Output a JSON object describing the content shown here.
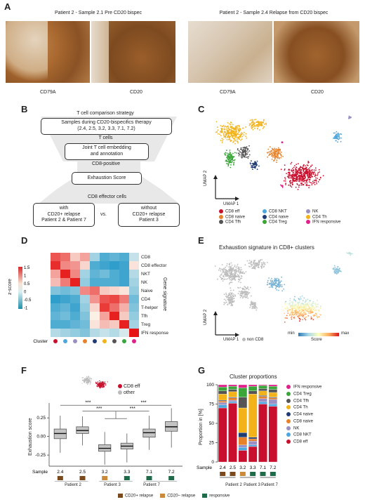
{
  "panelA": {
    "label": "A",
    "left_title": "Patient 2 - Sample 2.1 Pre CD20 bispec",
    "right_title": "Patient 2 - Sample 2.4 Relapse from CD20 bispec",
    "img_labels": [
      "CD79A",
      "CD20",
      "CD79A",
      "CD20"
    ]
  },
  "panelB": {
    "label": "B",
    "title": "T cell comparison strategy",
    "box1": "Samples during CD20-bispecifics therapy",
    "box1b": "(2.4, 2.5, 3.2, 3.3, 7.1, 7.2)",
    "step1": "T cells",
    "box2": "Joint T cell embedding",
    "box2b": "and annotation",
    "step2": "CD8-positive",
    "box3": "Exhaustion Score",
    "step3": "CD8 effector cells",
    "box4a": "with",
    "box4b": "CD20+ relapse",
    "box4c": "Patient 2 & Patient 7",
    "vs": "vs.",
    "box5a": "without",
    "box5b": "CD20+ relapse",
    "box5c": "Patient 3"
  },
  "panelC": {
    "label": "C",
    "ylabel": "UMAP 2",
    "xlabel": "UMAP 1",
    "legend": [
      {
        "name": "CD8 eff",
        "color": "#c8102e"
      },
      {
        "name": "CD8 NKT",
        "color": "#4ea6dc"
      },
      {
        "name": "NK",
        "color": "#9b8fc4"
      },
      {
        "name": "CD8 naive",
        "color": "#e8822a"
      },
      {
        "name": "CD4 naive",
        "color": "#1f3b73"
      },
      {
        "name": "CD4 Th",
        "color": "#f2b21a"
      },
      {
        "name": "CD4 Tfh",
        "color": "#555555"
      },
      {
        "name": "CD4 Treg",
        "color": "#3aa63a"
      },
      {
        "name": "IFN responsive",
        "color": "#e0218a"
      }
    ]
  },
  "panelD": {
    "label": "D",
    "rows": [
      "CD8",
      "CD8 effector",
      "NKT",
      "NK",
      "Naive",
      "CD4",
      "T-helper",
      "Tfh",
      "Treg",
      "IFN response"
    ],
    "cols": [
      "CD8 eff",
      "CD8 NKT",
      "NK",
      "CD8 naive",
      "CD4 naive",
      "CD4 Th",
      "CD4 Tfh",
      "CD4 Treg",
      "IFN responsive"
    ],
    "col_colors": [
      "#c8102e",
      "#4ea6dc",
      "#9b8fc4",
      "#e8822a",
      "#1f3b73",
      "#f2b21a",
      "#555555",
      "#3aa63a",
      "#e0218a"
    ],
    "cluster_label": "Cluster",
    "gene_signature_label": "Gene signature",
    "zscore_label": "z-score",
    "ticks": [
      "1.5",
      "1",
      "0.5",
      "0",
      "-0.5",
      "-1"
    ],
    "values": [
      [
        1.2,
        1.0,
        0.3,
        0.6,
        -0.4,
        -0.9,
        -0.8,
        -0.9,
        -0.2
      ],
      [
        1.5,
        0.8,
        0.7,
        0.2,
        -0.9,
        -1.0,
        -1.1,
        -1.0,
        0.1
      ],
      [
        0.6,
        1.6,
        0.8,
        -0.4,
        -0.8,
        -0.7,
        -0.9,
        -1.0,
        -0.3
      ],
      [
        0.4,
        0.9,
        1.6,
        -0.5,
        -0.9,
        -0.9,
        -0.9,
        -1.0,
        -0.4
      ],
      [
        -0.6,
        -0.7,
        -0.6,
        0.8,
        1.0,
        0.3,
        0.2,
        0.1,
        -0.5
      ],
      [
        -1.1,
        -1.0,
        -0.9,
        -0.4,
        0.7,
        1.2,
        1.3,
        0.9,
        -0.7
      ],
      [
        -0.9,
        -0.8,
        -1.0,
        -0.5,
        0.2,
        1.4,
        1.0,
        0.5,
        -0.6
      ],
      [
        -0.8,
        -0.7,
        -0.9,
        -0.6,
        0.0,
        0.6,
        1.6,
        0.3,
        -0.5
      ],
      [
        -0.9,
        -0.9,
        -0.8,
        -0.7,
        0.1,
        0.4,
        0.3,
        1.6,
        -0.4
      ],
      [
        -0.3,
        -0.4,
        -0.5,
        -0.6,
        -0.3,
        -0.2,
        -0.3,
        -0.1,
        1.7
      ]
    ]
  },
  "panelE": {
    "label": "E",
    "title": "Exhaustion signature in CD8+ clusters",
    "ylabel": "UMAP 2",
    "xlabel": "UMAP 1",
    "non_cd8": "non CD8",
    "score": "Score",
    "min": "min",
    "max": "max"
  },
  "panelF": {
    "label": "F",
    "ylabel": "Exhaustion score",
    "legend_eff": "CD8 eff",
    "legend_other": "other",
    "xlabel": "Sample",
    "sig": [
      "***",
      "***",
      "***",
      "***"
    ],
    "patients": [
      "Patient 2",
      "Patient 3",
      "Patient 7"
    ]
  },
  "panelG": {
    "label": "G",
    "title": "Cluster proportions",
    "ylabel": "Proportion in [%]",
    "xlabel": "Sample",
    "patients": [
      "Patient 2",
      "Patient 3",
      "Patient 7"
    ],
    "legend": [
      {
        "name": "IFN responsive",
        "color": "#e0218a"
      },
      {
        "name": "CD4 Treg",
        "color": "#3aa63a"
      },
      {
        "name": "CD4 Tfh",
        "color": "#555555"
      },
      {
        "name": "CD4 Th",
        "color": "#f2b21a"
      },
      {
        "name": "CD4 naive",
        "color": "#1f3b73"
      },
      {
        "name": "CD8 naive",
        "color": "#e8822a"
      },
      {
        "name": "NK",
        "color": "#9b8fc4"
      },
      {
        "name": "CD8 NKT",
        "color": "#4ea6dc"
      },
      {
        "name": "CD8 eff",
        "color": "#c8102e"
      }
    ]
  },
  "bottom_legend": [
    {
      "name": "CD20+ relapse",
      "color": "#7a4a1e"
    },
    {
      "name": "CD20– relapse",
      "color": "#c98a3c"
    },
    {
      "name": "responsive",
      "color": "#1e6b4a"
    }
  ],
  "chart_data": [
    {
      "type": "box",
      "title": "",
      "ylabel": "Exhaustion score",
      "xlabel": "Sample",
      "categories": [
        "2.4",
        "2.5",
        "3.2",
        "3.3",
        "7.1",
        "7.2"
      ],
      "ylim": [
        -0.4,
        0.45
      ],
      "yticks": [
        -0.25,
        0.0,
        0.25
      ],
      "yticklabels": [
        "-0.25",
        "0.00",
        "0.25"
      ],
      "series": [
        {
          "category": "2.4",
          "min": -0.22,
          "q1": -0.03,
          "median": 0.04,
          "q3": 0.1,
          "max": 0.28
        },
        {
          "category": "2.5",
          "min": -0.12,
          "q1": 0.04,
          "median": 0.08,
          "q3": 0.13,
          "max": 0.27
        },
        {
          "category": "3.2",
          "min": -0.38,
          "q1": -0.2,
          "median": -0.16,
          "q3": -0.11,
          "max": 0.06
        },
        {
          "category": "3.3",
          "min": -0.35,
          "q1": -0.17,
          "median": -0.13,
          "q3": -0.09,
          "max": 0.04
        },
        {
          "category": "7.1",
          "min": -0.18,
          "q1": -0.01,
          "median": 0.05,
          "q3": 0.1,
          "max": 0.28
        },
        {
          "category": "7.2",
          "min": -0.15,
          "q1": 0.07,
          "median": 0.13,
          "q3": 0.2,
          "max": 0.38
        }
      ],
      "condition_colors": [
        "#7a4a1e",
        "#7a4a1e",
        "#c98a3c",
        "#1e6b4a",
        "#1e6b4a",
        "#1e6b4a"
      ]
    },
    {
      "type": "stacked_bar",
      "title": "Cluster proportions",
      "ylabel": "Proportion in [%]",
      "xlabel": "Sample",
      "categories": [
        "2.4",
        "2.5",
        "3.2",
        "3.3",
        "7.1",
        "7.2"
      ],
      "ylim": [
        0,
        100
      ],
      "yticks": [
        0,
        25,
        50,
        75,
        100
      ],
      "series": [
        {
          "name": "CD8 eff",
          "color": "#c8102e",
          "values": [
            70,
            76,
            15,
            20,
            75,
            72
          ]
        },
        {
          "name": "CD8 NKT",
          "color": "#4ea6dc",
          "values": [
            4,
            2,
            4,
            2,
            3,
            3
          ]
        },
        {
          "name": "NK",
          "color": "#9b8fc4",
          "values": [
            3,
            2,
            3,
            5,
            4,
            6
          ]
        },
        {
          "name": "CD8 naive",
          "color": "#e8822a",
          "values": [
            2,
            3,
            10,
            3,
            3,
            2
          ]
        },
        {
          "name": "CD4 naive",
          "color": "#1f3b73",
          "values": [
            1,
            1,
            6,
            2,
            1,
            1
          ]
        },
        {
          "name": "CD4 Th",
          "color": "#f2b21a",
          "values": [
            8,
            7,
            32,
            56,
            6,
            6
          ]
        },
        {
          "name": "CD4 Tfh",
          "color": "#555555",
          "values": [
            4,
            3,
            14,
            4,
            3,
            4
          ]
        },
        {
          "name": "CD4 Treg",
          "color": "#3aa63a",
          "values": [
            5,
            4,
            12,
            6,
            4,
            4
          ]
        },
        {
          "name": "IFN responsive",
          "color": "#e0218a",
          "values": [
            3,
            2,
            4,
            2,
            1,
            2
          ]
        }
      ],
      "condition_colors": [
        "#7a4a1e",
        "#7a4a1e",
        "#c98a3c",
        "#1e6b4a",
        "#1e6b4a",
        "#1e6b4a"
      ]
    }
  ]
}
